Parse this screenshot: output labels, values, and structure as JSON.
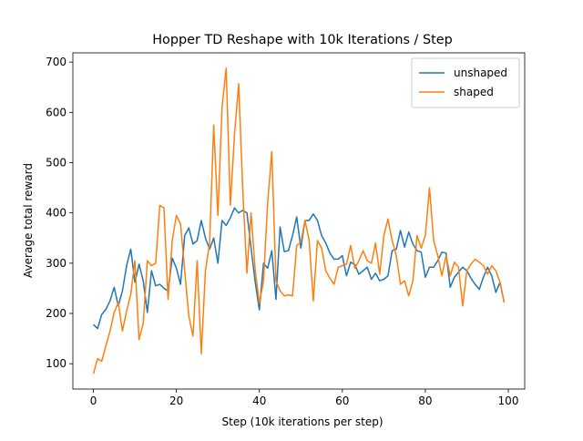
{
  "chart_data": {
    "type": "line",
    "title": "Hopper TD Reshape with 10k Iterations / Step",
    "x_label": "Step (10k iterations per step)",
    "y_label": "Average total reward",
    "x": [
      0,
      1,
      2,
      3,
      4,
      5,
      6,
      7,
      8,
      9,
      10,
      11,
      12,
      13,
      14,
      15,
      16,
      17,
      18,
      19,
      20,
      21,
      22,
      23,
      24,
      25,
      26,
      27,
      28,
      29,
      30,
      31,
      32,
      33,
      34,
      35,
      36,
      37,
      38,
      39,
      40,
      41,
      42,
      43,
      44,
      45,
      46,
      47,
      48,
      49,
      50,
      51,
      52,
      53,
      54,
      55,
      56,
      57,
      58,
      59,
      60,
      61,
      62,
      63,
      64,
      65,
      66,
      67,
      68,
      69,
      70,
      71,
      72,
      73,
      74,
      75,
      76,
      77,
      78,
      79,
      80,
      81,
      82,
      83,
      84,
      85,
      86,
      87,
      88,
      89,
      90,
      91,
      92,
      93,
      94,
      95,
      96,
      97,
      98,
      99
    ],
    "series": [
      {
        "name": "unshaped",
        "color": "#1f77b4",
        "values": [
          178,
          170,
          198,
          208,
          225,
          252,
          215,
          245,
          295,
          328,
          262,
          298,
          265,
          202,
          285,
          255,
          258,
          250,
          245,
          310,
          290,
          258,
          355,
          370,
          338,
          345,
          385,
          350,
          328,
          350,
          300,
          385,
          375,
          390,
          410,
          400,
          405,
          400,
          330,
          262,
          207,
          300,
          290,
          325,
          228,
          372,
          323,
          325,
          355,
          392,
          330,
          385,
          385,
          398,
          385,
          355,
          340,
          320,
          308,
          308,
          315,
          275,
          302,
          297,
          278,
          285,
          292,
          268,
          280,
          265,
          268,
          275,
          325,
          328,
          365,
          332,
          362,
          338,
          325,
          322,
          272,
          292,
          292,
          305,
          322,
          320,
          252,
          272,
          282,
          292,
          285,
          270,
          258,
          248,
          272,
          292,
          275,
          242,
          262,
          222
        ]
      },
      {
        "name": "shaped",
        "color": "#ff7f0e",
        "values": [
          80,
          110,
          105,
          135,
          165,
          202,
          222,
          165,
          205,
          238,
          305,
          148,
          180,
          305,
          295,
          300,
          415,
          410,
          228,
          345,
          395,
          378,
          285,
          195,
          155,
          305,
          120,
          285,
          340,
          575,
          395,
          610,
          688,
          415,
          555,
          657,
          445,
          280,
          400,
          285,
          220,
          265,
          420,
          522,
          265,
          245,
          235,
          237,
          235,
          335,
          342,
          385,
          345,
          225,
          345,
          330,
          285,
          270,
          258,
          292,
          295,
          298,
          335,
          290,
          305,
          325,
          305,
          300,
          340,
          278,
          355,
          388,
          345,
          315,
          258,
          265,
          235,
          265,
          355,
          330,
          355,
          450,
          345,
          315,
          275,
          315,
          275,
          302,
          292,
          215,
          285,
          298,
          308,
          302,
          295,
          278,
          295,
          285,
          262,
          222
        ]
      }
    ],
    "xlim": [
      -4.95,
      103.95
    ],
    "ylim": [
      49.6,
      718.4
    ],
    "xticks": [
      0,
      20,
      40,
      60,
      80,
      100
    ],
    "yticks": [
      100,
      200,
      300,
      400,
      500,
      600,
      700
    ],
    "legend": "upper right"
  }
}
